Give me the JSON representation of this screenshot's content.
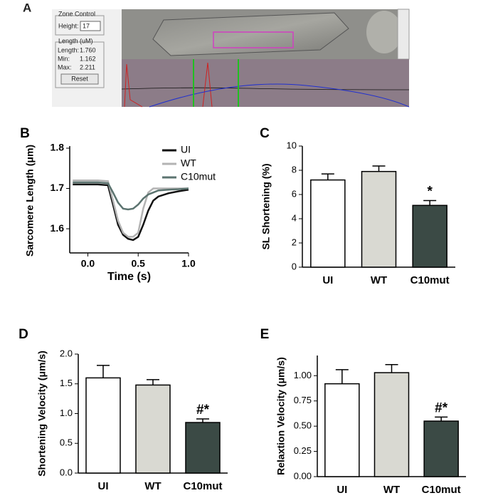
{
  "panel_a": {
    "label": "A",
    "zone_title": "Zone Control",
    "height_label": "Height:",
    "height_value": "17",
    "length_title": "Length (uM)",
    "length_rows": [
      [
        "Length:",
        "1.760"
      ],
      [
        "Min:",
        "1.162"
      ],
      [
        "Max:",
        "2.211"
      ]
    ],
    "button": "Reset"
  },
  "chart_data": [
    {
      "type": "line",
      "label": "B",
      "ylabel": "Sarcomere Length (μm)",
      "xlabel": "Time (s)",
      "xlim": [
        -0.18,
        1.0
      ],
      "xticks": [
        {
          "value": 0,
          "label": "0.0"
        },
        0.5,
        {
          "value": 1,
          "label": "1.0"
        }
      ],
      "ylim": [
        1.54,
        1.8
      ],
      "yticks": [
        1.6,
        1.7,
        1.8
      ],
      "x": [
        -0.15,
        0,
        0.1,
        0.2,
        0.25,
        0.3,
        0.35,
        0.4,
        0.45,
        0.5,
        0.55,
        0.6,
        0.65,
        0.7,
        0.8,
        0.9,
        1.0
      ],
      "series": [
        {
          "name": "UI",
          "color": "#111111",
          "values": [
            1.71,
            1.71,
            1.71,
            1.708,
            1.66,
            1.61,
            1.585,
            1.575,
            1.572,
            1.58,
            1.61,
            1.645,
            1.67,
            1.68,
            1.688,
            1.693,
            1.697
          ]
        },
        {
          "name": "WT",
          "color": "#b3b3b3",
          "values": [
            1.72,
            1.72,
            1.72,
            1.718,
            1.67,
            1.62,
            1.59,
            1.58,
            1.58,
            1.59,
            1.65,
            1.69,
            1.7,
            1.7,
            1.7,
            1.7,
            1.7
          ]
        },
        {
          "name": "C10mut",
          "color": "#5c7470",
          "values": [
            1.715,
            1.715,
            1.715,
            1.713,
            1.69,
            1.665,
            1.65,
            1.648,
            1.65,
            1.66,
            1.675,
            1.685,
            1.69,
            1.695,
            1.697,
            1.698,
            1.7
          ]
        }
      ]
    },
    {
      "type": "bar",
      "label": "C",
      "ylabel": "SL Shortening (%)",
      "categories": [
        "UI",
        "WT",
        "C10mut"
      ],
      "values": [
        7.2,
        7.9,
        5.1
      ],
      "errors": [
        0.5,
        0.45,
        0.4
      ],
      "colors": [
        "#ffffff",
        "#d9d9d2",
        "#3b4a45"
      ],
      "annotations": [
        null,
        null,
        "*"
      ],
      "ylim": [
        0,
        10
      ],
      "yticks": [
        0,
        2,
        4,
        6,
        8,
        10
      ]
    },
    {
      "type": "bar",
      "label": "D",
      "ylabel": "Shortening Velocity (μm/s)",
      "categories": [
        "UI",
        "WT",
        "C10mut"
      ],
      "values": [
        1.6,
        1.48,
        0.85
      ],
      "errors": [
        0.21,
        0.09,
        0.06
      ],
      "colors": [
        "#ffffff",
        "#d9d9d2",
        "#3b4a45"
      ],
      "annotations": [
        null,
        null,
        "#*"
      ],
      "ylim": [
        0,
        2.0
      ],
      "yticks": [
        {
          "value": 0,
          "label": "0.0"
        },
        0.5,
        {
          "value": 1,
          "label": "1.0"
        },
        1.5,
        {
          "value": 2,
          "label": "2.0"
        }
      ]
    },
    {
      "type": "bar",
      "label": "E",
      "ylabel": "Relaxtion Velocity (μm/s)",
      "categories": [
        "UI",
        "WT",
        "C10mut"
      ],
      "values": [
        0.92,
        1.03,
        0.55
      ],
      "errors": [
        0.14,
        0.08,
        0.04
      ],
      "colors": [
        "#ffffff",
        "#d9d9d2",
        "#3b4a45"
      ],
      "annotations": [
        null,
        null,
        "#*"
      ],
      "ylim": [
        0,
        1.2
      ],
      "yticks": [
        {
          "value": 0,
          "label": "0.00"
        },
        {
          "value": 0.25,
          "label": "0.25"
        },
        {
          "value": 0.5,
          "label": "0.50"
        },
        {
          "value": 0.75,
          "label": "0.75"
        },
        {
          "value": 1,
          "label": "1.00"
        }
      ]
    }
  ]
}
